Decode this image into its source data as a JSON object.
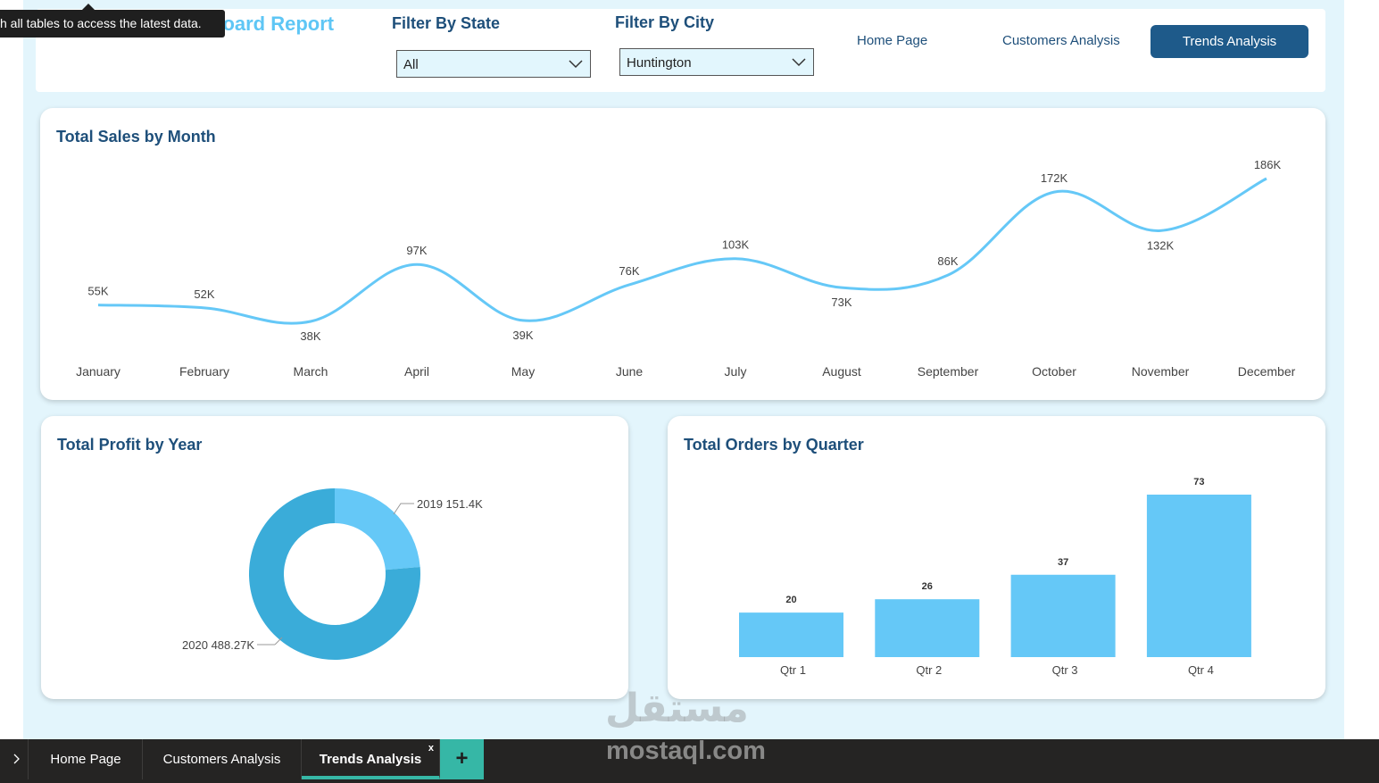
{
  "tooltip": {
    "text": "h all tables to access the latest data."
  },
  "header": {
    "report_title": "board Report",
    "filter_state": {
      "label": "Filter By State",
      "value": "All"
    },
    "filter_city": {
      "label": "Filter By City",
      "value": "Huntington"
    },
    "nav": {
      "home": "Home Page",
      "customers": "Customers Analysis",
      "trends": "Trends Analysis"
    }
  },
  "colors": {
    "line": "#65c8f7",
    "bar": "#65c8f7",
    "donut_2019": "#65c8f7",
    "donut_2020": "#3aacd9",
    "title": "#1e4f7a"
  },
  "sales_chart": {
    "title": "Total Sales by Month",
    "chart_data": {
      "type": "line",
      "title": "Total Sales by Month",
      "categories": [
        "January",
        "February",
        "March",
        "April",
        "May",
        "June",
        "July",
        "August",
        "September",
        "October",
        "November",
        "December"
      ],
      "values": [
        55,
        52,
        38,
        97,
        39,
        76,
        103,
        73,
        86,
        172,
        132,
        186
      ],
      "labels": [
        "55K",
        "52K",
        "38K",
        "97K",
        "39K",
        "76K",
        "103K",
        "73K",
        "86K",
        "172K",
        "132K",
        "186K"
      ],
      "unit": "K"
    }
  },
  "profit_chart": {
    "title": "Total Profit by Year",
    "chart_data": {
      "type": "pie",
      "title": "Total Profit by Year",
      "slices": [
        {
          "name": "2019",
          "value": 151.4,
          "label": "2019 151.4K"
        },
        {
          "name": "2020",
          "value": 488.27,
          "label": "2020 488.27K"
        }
      ]
    }
  },
  "orders_chart": {
    "title": "Total Orders by Quarter",
    "chart_data": {
      "type": "bar",
      "title": "Total Orders by Quarter",
      "categories": [
        "Qtr 1",
        "Qtr 2",
        "Qtr 3",
        "Qtr 4"
      ],
      "values": [
        20,
        26,
        37,
        73
      ],
      "ylim": [
        0,
        73
      ]
    }
  },
  "tabs": {
    "items": [
      "Home Page",
      "Customers Analysis",
      "Trends Analysis"
    ],
    "close": "x",
    "add": "+"
  },
  "watermark": {
    "arabic": "مستقل",
    "latin": "mostaql.com"
  }
}
